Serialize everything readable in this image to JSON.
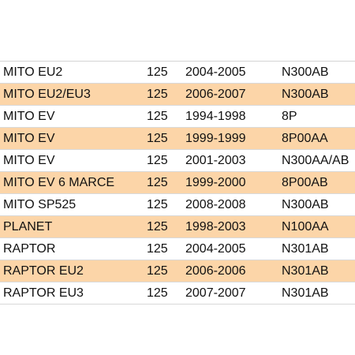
{
  "rows": [
    {
      "model": "MITO EU2",
      "cc": "125",
      "years": "2004-2005",
      "code": "N300AB",
      "highlight": false
    },
    {
      "model": "MITO EU2/EU3",
      "cc": "125",
      "years": "2006-2007",
      "code": "N300AB",
      "highlight": true
    },
    {
      "model": "MITO EV",
      "cc": "125",
      "years": "1994-1998",
      "code": "8P",
      "highlight": false
    },
    {
      "model": "MITO EV",
      "cc": "125",
      "years": "1999-1999",
      "code": "8P00AA",
      "highlight": true
    },
    {
      "model": "MITO EV",
      "cc": "125",
      "years": "2001-2003",
      "code": "N300AA/AB",
      "highlight": false
    },
    {
      "model": "MITO EV 6 MARCE",
      "cc": "125",
      "years": "1999-2000",
      "code": "8P00AB",
      "highlight": true
    },
    {
      "model": "MITO SP525",
      "cc": "125",
      "years": "2008-2008",
      "code": "N300AB",
      "highlight": false
    },
    {
      "model": "PLANET",
      "cc": "125",
      "years": "1998-2003",
      "code": "N100AA",
      "highlight": true
    },
    {
      "model": "RAPTOR",
      "cc": "125",
      "years": "2004-2005",
      "code": "N301AB",
      "highlight": false
    },
    {
      "model": "RAPTOR EU2",
      "cc": "125",
      "years": "2006-2006",
      "code": "N301AB",
      "highlight": true
    },
    {
      "model": "RAPTOR EU3",
      "cc": "125",
      "years": "2007-2007",
      "code": "N301AB",
      "highlight": false
    }
  ],
  "colors": {
    "highlight_row": "#fcd5a8",
    "text": "#111111",
    "grid": "#d9d9d9"
  }
}
